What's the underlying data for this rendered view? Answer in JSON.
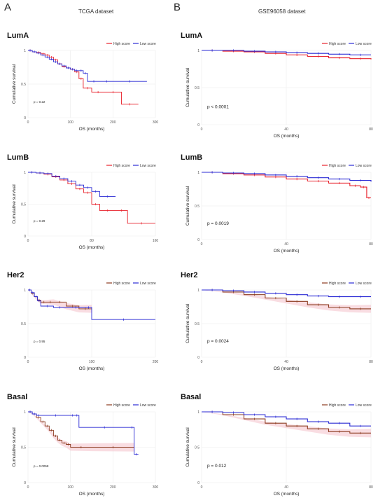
{
  "panels": {
    "A": {
      "letter": "A",
      "title": "TCGA dataset"
    },
    "B": {
      "letter": "B",
      "title": "GSE96058  dataset"
    }
  },
  "colors": {
    "high": "#e8202a",
    "low": "#2a2ad4",
    "high_dark": "#8b3a1e",
    "ci_band": "#f5c6cf"
  },
  "legend": {
    "high": "High score",
    "low": "Low score"
  },
  "chart_data": [
    {
      "id": "tcga-luma",
      "type": "line",
      "panel": "A",
      "title": "LumA",
      "xlabel": "OS (months)",
      "ylabel": "Cumulative survival",
      "xlim": [
        0,
        300
      ],
      "ylim": [
        0,
        1
      ],
      "xticks": [
        0,
        100,
        200,
        300
      ],
      "xtick_labels": [
        "0",
        "100",
        "200",
        "300"
      ],
      "yticks": [
        0,
        0.5,
        1
      ],
      "ytick_labels": [
        "0",
        "0.5",
        "1"
      ],
      "pvalue": "p = 0.22",
      "legend_position": "top-right",
      "high_style": "red",
      "series": [
        {
          "name": "High score",
          "x": [
            0,
            10,
            20,
            30,
            40,
            50,
            60,
            70,
            80,
            90,
            100,
            110,
            120,
            130,
            150,
            180,
            220,
            260
          ],
          "y": [
            1,
            0.98,
            0.97,
            0.95,
            0.93,
            0.9,
            0.86,
            0.8,
            0.76,
            0.74,
            0.72,
            0.68,
            0.58,
            0.44,
            0.38,
            0.38,
            0.2,
            0.2
          ]
        },
        {
          "name": "Low score",
          "x": [
            0,
            10,
            20,
            30,
            40,
            50,
            60,
            70,
            80,
            90,
            100,
            110,
            120,
            130,
            140,
            170,
            200,
            280
          ],
          "y": [
            1,
            0.98,
            0.96,
            0.93,
            0.9,
            0.87,
            0.83,
            0.8,
            0.77,
            0.74,
            0.72,
            0.7,
            0.7,
            0.66,
            0.54,
            0.54,
            0.54,
            0.54
          ]
        }
      ]
    },
    {
      "id": "gse-luma",
      "type": "line",
      "panel": "B",
      "title": "LumA",
      "xlabel": "OS (months)",
      "ylabel": "Cumulative survival",
      "xlim": [
        0,
        80
      ],
      "ylim": [
        0,
        1
      ],
      "xticks": [
        0,
        40,
        80
      ],
      "xtick_labels": [
        "0",
        "40",
        "80"
      ],
      "yticks": [
        0,
        0.5,
        1
      ],
      "ytick_labels": [
        "0",
        "0.5",
        "1"
      ],
      "pvalue": "p < 0.0001",
      "legend_position": "top-right",
      "high_style": "red",
      "series": [
        {
          "name": "High score",
          "x": [
            0,
            10,
            20,
            30,
            40,
            50,
            60,
            70,
            80
          ],
          "y": [
            1,
            0.99,
            0.98,
            0.96,
            0.94,
            0.92,
            0.9,
            0.89,
            0.88
          ]
        },
        {
          "name": "Low score",
          "x": [
            0,
            10,
            20,
            30,
            40,
            50,
            60,
            70,
            80
          ],
          "y": [
            1,
            1,
            0.99,
            0.98,
            0.97,
            0.96,
            0.95,
            0.94,
            0.94
          ]
        }
      ]
    },
    {
      "id": "tcga-lumb",
      "type": "line",
      "panel": "A",
      "title": "LumB",
      "xlabel": "OS (months)",
      "ylabel": "Cumulative survival",
      "xlim": [
        0,
        160
      ],
      "ylim": [
        0,
        1
      ],
      "xticks": [
        0,
        80,
        160
      ],
      "xtick_labels": [
        "0",
        "80",
        "160"
      ],
      "yticks": [
        0,
        0.5,
        1
      ],
      "ytick_labels": [
        "0",
        "0.5",
        "1"
      ],
      "pvalue": "p = 0.29",
      "legend_position": "top-right",
      "high_style": "red",
      "series": [
        {
          "name": "High score",
          "x": [
            0,
            10,
            20,
            30,
            40,
            50,
            60,
            70,
            80,
            90,
            110,
            125,
            160
          ],
          "y": [
            1,
            0.99,
            0.97,
            0.93,
            0.88,
            0.82,
            0.74,
            0.68,
            0.5,
            0.4,
            0.4,
            0.2,
            0.2
          ]
        },
        {
          "name": "Low score",
          "x": [
            0,
            10,
            20,
            30,
            40,
            50,
            60,
            70,
            80,
            90,
            110
          ],
          "y": [
            1,
            0.99,
            0.98,
            0.94,
            0.9,
            0.86,
            0.8,
            0.76,
            0.7,
            0.62,
            0.62
          ]
        }
      ]
    },
    {
      "id": "gse-lumb",
      "type": "line",
      "panel": "B",
      "title": "LumB",
      "xlabel": "OS (months)",
      "ylabel": "Cumulative survival",
      "xlim": [
        0,
        80
      ],
      "ylim": [
        0,
        1
      ],
      "xticks": [
        0,
        40,
        80
      ],
      "xtick_labels": [
        "0",
        "40",
        "80"
      ],
      "yticks": [
        0,
        0.5,
        1
      ],
      "ytick_labels": [
        "0",
        "0.5",
        "1"
      ],
      "pvalue": "p = 0.0019",
      "legend_position": "top-right",
      "high_style": "red",
      "series": [
        {
          "name": "High score",
          "x": [
            0,
            10,
            20,
            30,
            40,
            50,
            60,
            70,
            75,
            78,
            80
          ],
          "y": [
            1,
            0.98,
            0.96,
            0.93,
            0.9,
            0.87,
            0.84,
            0.8,
            0.78,
            0.62,
            0.62
          ]
        },
        {
          "name": "Low score",
          "x": [
            0,
            10,
            20,
            30,
            40,
            50,
            60,
            70,
            80
          ],
          "y": [
            1,
            0.99,
            0.98,
            0.96,
            0.94,
            0.92,
            0.9,
            0.88,
            0.86
          ]
        }
      ]
    },
    {
      "id": "tcga-her2",
      "type": "line",
      "panel": "A",
      "title": "Her2",
      "xlabel": "OS (months)",
      "ylabel": "",
      "xlim": [
        0,
        200
      ],
      "ylim": [
        0,
        1
      ],
      "xticks": [
        0,
        100,
        200
      ],
      "xtick_labels": [
        "0",
        "100",
        "200"
      ],
      "yticks": [
        0,
        0.5,
        1
      ],
      "ytick_labels": [
        "0",
        "0.5",
        "1"
      ],
      "pvalue": "p = 0.95",
      "legend_position": "top-right",
      "high_style": "dark",
      "series": [
        {
          "name": "High score",
          "x": [
            0,
            5,
            10,
            15,
            20,
            30,
            40,
            60,
            80,
            100
          ],
          "y": [
            1,
            0.95,
            0.9,
            0.85,
            0.82,
            0.82,
            0.82,
            0.76,
            0.72,
            0.72
          ]
        },
        {
          "name": "Low score",
          "x": [
            0,
            5,
            10,
            15,
            20,
            40,
            60,
            90,
            100,
            200
          ],
          "y": [
            1,
            0.96,
            0.9,
            0.84,
            0.76,
            0.74,
            0.74,
            0.74,
            0.56,
            0.56
          ]
        }
      ]
    },
    {
      "id": "gse-her2",
      "type": "line",
      "panel": "B",
      "title": "Her2",
      "xlabel": "OS (months)",
      "ylabel": "Cumulative survival",
      "xlim": [
        0,
        80
      ],
      "ylim": [
        0,
        1
      ],
      "xticks": [
        0,
        40,
        80
      ],
      "xtick_labels": [
        "0",
        "40",
        "80"
      ],
      "yticks": [
        0,
        0.5,
        1
      ],
      "ytick_labels": [
        "0",
        "0.5",
        "1"
      ],
      "pvalue": "p = 0.0024",
      "legend_position": "top-right",
      "high_style": "dark",
      "series": [
        {
          "name": "High score",
          "x": [
            0,
            10,
            20,
            30,
            40,
            50,
            60,
            70,
            80
          ],
          "y": [
            1,
            0.97,
            0.93,
            0.88,
            0.83,
            0.78,
            0.74,
            0.72,
            0.72
          ]
        },
        {
          "name": "Low score",
          "x": [
            0,
            10,
            20,
            30,
            40,
            50,
            60,
            70,
            80
          ],
          "y": [
            1,
            0.99,
            0.97,
            0.95,
            0.93,
            0.91,
            0.9,
            0.9,
            0.9
          ]
        }
      ]
    },
    {
      "id": "tcga-basal",
      "type": "line",
      "panel": "A",
      "title": "Basal",
      "xlabel": "OS (months)",
      "ylabel": "Cumulative survival",
      "xlim": [
        0,
        300
      ],
      "ylim": [
        0,
        1
      ],
      "xticks": [
        0,
        100,
        200,
        300
      ],
      "xtick_labels": [
        "0",
        "100",
        "200",
        "300"
      ],
      "yticks": [
        0,
        0.5,
        1
      ],
      "ytick_labels": [
        "0",
        "0.5",
        "1"
      ],
      "pvalue": "p = 0.0058",
      "legend_position": "top-right",
      "high_style": "dark",
      "series": [
        {
          "name": "High score",
          "x": [
            0,
            10,
            20,
            30,
            40,
            50,
            60,
            70,
            80,
            90,
            100,
            150,
            250
          ],
          "y": [
            1,
            0.97,
            0.92,
            0.86,
            0.8,
            0.74,
            0.66,
            0.6,
            0.56,
            0.54,
            0.5,
            0.5,
            0.5
          ]
        },
        {
          "name": "Low score",
          "x": [
            0,
            10,
            20,
            30,
            100,
            110,
            120,
            240,
            250,
            260
          ],
          "y": [
            1,
            0.97,
            0.95,
            0.95,
            0.95,
            0.95,
            0.78,
            0.78,
            0.4,
            0.4
          ]
        }
      ]
    },
    {
      "id": "gse-basal",
      "type": "line",
      "panel": "B",
      "title": "Basal",
      "xlabel": "OS (months)",
      "ylabel": "Cumulative survival",
      "xlim": [
        0,
        80
      ],
      "ylim": [
        0,
        1
      ],
      "xticks": [
        0,
        40,
        80
      ],
      "xtick_labels": [
        "0",
        "40",
        "80"
      ],
      "yticks": [
        0,
        0.5,
        1
      ],
      "ytick_labels": [
        "0",
        "0.5",
        "1"
      ],
      "pvalue": "p = 0.012",
      "legend_position": "top-right",
      "high_style": "dark",
      "series": [
        {
          "name": "High score",
          "x": [
            0,
            10,
            20,
            30,
            40,
            50,
            60,
            70,
            80
          ],
          "y": [
            1,
            0.96,
            0.9,
            0.84,
            0.8,
            0.76,
            0.72,
            0.7,
            0.7
          ]
        },
        {
          "name": "Low score",
          "x": [
            0,
            10,
            20,
            30,
            40,
            50,
            60,
            70,
            80
          ],
          "y": [
            1,
            0.99,
            0.96,
            0.93,
            0.9,
            0.86,
            0.84,
            0.8,
            0.8
          ]
        }
      ]
    }
  ]
}
